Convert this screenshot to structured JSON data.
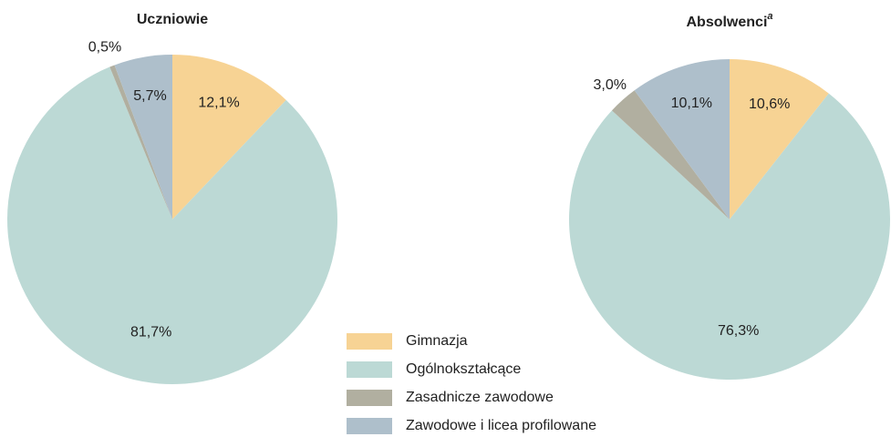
{
  "chart_data": [
    {
      "type": "pie",
      "title": "Uczniowie",
      "values": [
        12.1,
        81.7,
        0.5,
        5.7
      ],
      "value_labels": [
        "12,1%",
        "81,7%",
        "0,5%",
        "5,7%"
      ]
    },
    {
      "type": "pie",
      "title": "Absolwenci",
      "title_note": "a",
      "values": [
        10.6,
        76.3,
        3.0,
        10.1
      ],
      "value_labels": [
        "10,6%",
        "76,3%",
        "3,0%",
        "10,1%"
      ]
    }
  ],
  "legend": {
    "position": "bottom-center",
    "entries": [
      {
        "name": "Gimnazja",
        "color": "#f7d394"
      },
      {
        "name": "Ogólnokształcące",
        "color": "#bcd9d5"
      },
      {
        "name": "Zasadnicze zawodowe",
        "color": "#b1afa0"
      },
      {
        "name": "Zawodowe i licea profilowane",
        "color": "#aebfcb"
      }
    ]
  }
}
